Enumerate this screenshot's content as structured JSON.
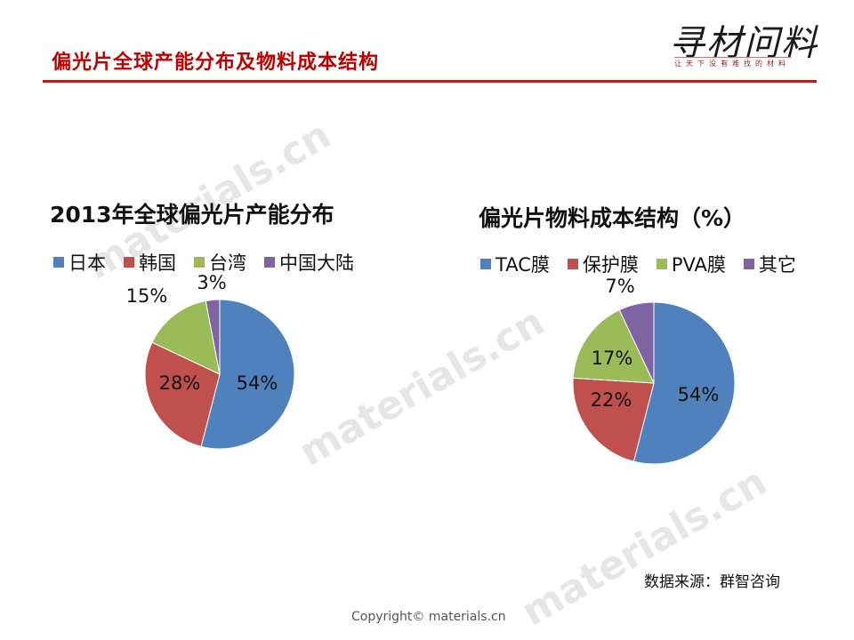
{
  "header": {
    "title": "偏光片全球产能分布及物料成本结构",
    "logo_text": "寻材问料",
    "logo_subtitle": "让天下没有难找的材料"
  },
  "watermark": "materials.cn",
  "colors": {
    "blue": "#4f81bd",
    "red": "#c0504d",
    "green": "#9bbb59",
    "purple": "#8064a2",
    "title_red": "#c00000"
  },
  "chart_data": [
    {
      "type": "pie",
      "title": "2013年全球偏光片产能分布",
      "categories": [
        "日本",
        "韩国",
        "台湾",
        "中国大陆"
      ],
      "values": [
        54,
        28,
        15,
        3
      ],
      "labels": [
        "54%",
        "28%",
        "15%",
        "3%"
      ],
      "unit": "%",
      "legend_position": "top"
    },
    {
      "type": "pie",
      "title": "偏光片物料成本结构（%）",
      "categories": [
        "TAC膜",
        "保护膜",
        "PVA膜",
        "其它"
      ],
      "values": [
        54,
        22,
        17,
        7
      ],
      "labels": [
        "54%",
        "22%",
        "17%",
        "7%"
      ],
      "unit": "%",
      "legend_position": "top"
    }
  ],
  "footer": {
    "source": "数据来源：群智咨询",
    "copyright": "Copyright© materials.cn"
  }
}
